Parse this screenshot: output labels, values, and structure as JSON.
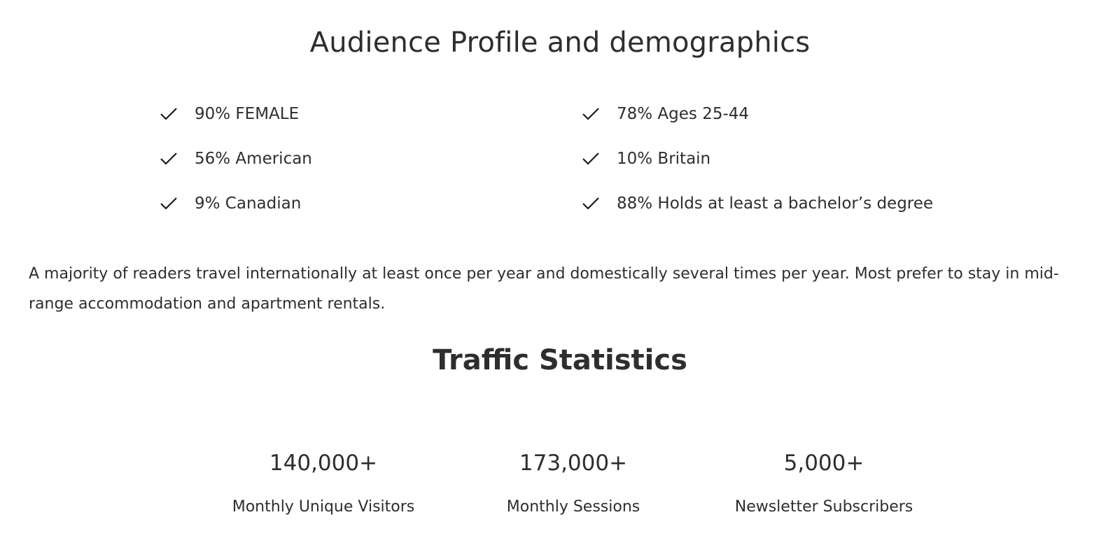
{
  "audience": {
    "title": "Audience Profile and demographics",
    "left_items": [
      {
        "icon": "check-icon",
        "text": "90% FEMALE"
      },
      {
        "icon": "check-icon",
        "text": "56% American"
      },
      {
        "icon": "check-icon",
        "text": "9% Canadian"
      }
    ],
    "right_items": [
      {
        "icon": "check-icon",
        "text": "78% Ages 25-44"
      },
      {
        "icon": "check-icon",
        "text": "10% Britain"
      },
      {
        "icon": "check-icon",
        "text": "88% Holds at least a bachelor’s degree"
      }
    ],
    "paragraph": "A majority of readers travel internationally at least once per year and domestically several times per year. Most prefer to stay in mid-range accommodation and apartment rentals."
  },
  "traffic": {
    "title": "Traffic Statistics",
    "stats": [
      {
        "value": "140,000+",
        "label": "Monthly Unique Visitors"
      },
      {
        "value": "173,000+",
        "label": "Monthly Sessions"
      },
      {
        "value": "5,000+",
        "label": "Newsletter Subscribers"
      }
    ]
  },
  "colors": {
    "text": "#2e2e2e",
    "background": "#ffffff"
  }
}
